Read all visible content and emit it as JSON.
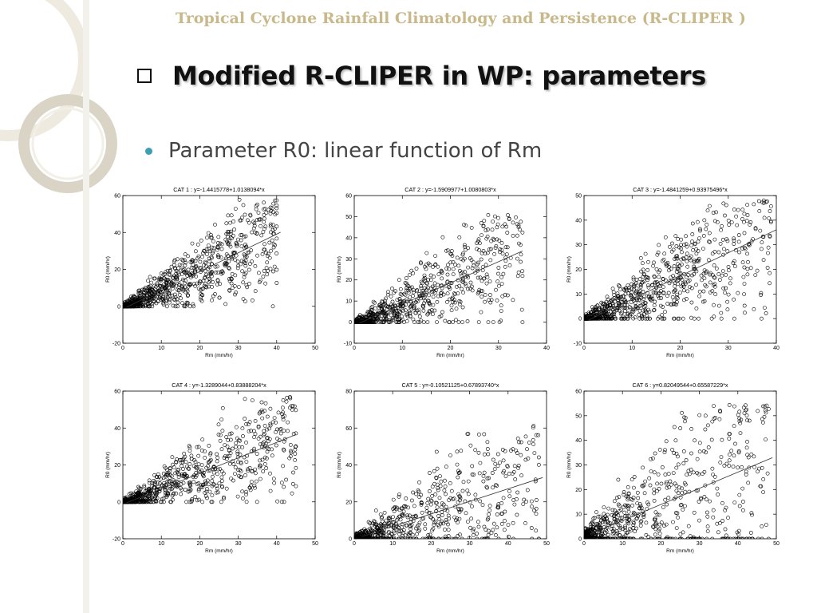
{
  "slide": {
    "header": "Tropical Cyclone Rainfall Climatology and Persistence (R-CLIPER )",
    "title": "Modified R-CLIPER in WP: parameters",
    "bullet": "Parameter R0: linear function of Rm",
    "colors": {
      "header": "#c8b88a",
      "bullet_dot": "#3d9fb3",
      "title": "#111111"
    }
  },
  "chart_data": [
    {
      "type": "scatter",
      "title": "CAT 1 : y=-1.4415778+1.0138094*x",
      "xlabel": "Rm (mm/hr)",
      "ylabel": "R0 (mm/hr)",
      "xlim": [
        0,
        50
      ],
      "ylim": [
        -20,
        60
      ],
      "xticks": [
        "0",
        "10",
        "20",
        "30",
        "40",
        "50"
      ],
      "yticks": [
        "-20",
        "0",
        "20",
        "40",
        "60"
      ],
      "fit": {
        "intercept": -1.4415778,
        "slope": 1.0138094,
        "x_range": [
          1,
          41
        ]
      },
      "scatter": {
        "n": 900,
        "x_max": 40,
        "y_min": 0,
        "y_max": 58,
        "noise": 0.35,
        "seed": 11
      }
    },
    {
      "type": "scatter",
      "title": "CAT 2 : y=-1.5909977+1.0080803*x",
      "xlabel": "Rm (mm/hr)",
      "ylabel": "R0 (mm/hr)",
      "xlim": [
        0,
        40
      ],
      "ylim": [
        -10,
        60
      ],
      "xticks": [
        "0",
        "10",
        "20",
        "30",
        "40"
      ],
      "yticks": [
        "-10",
        "0",
        "10",
        "20",
        "30",
        "40",
        "50",
        "60"
      ],
      "fit": {
        "intercept": -1.5909977,
        "slope": 1.0080803,
        "x_range": [
          1,
          35
        ]
      },
      "scatter": {
        "n": 800,
        "x_max": 35,
        "y_min": 0,
        "y_max": 51,
        "noise": 0.4,
        "seed": 23
      }
    },
    {
      "type": "scatter",
      "title": "CAT 3 : y=-1.4841259+0.93975496*x",
      "xlabel": "Rm (mm/hr)",
      "ylabel": "R0 (mm/hr)",
      "xlim": [
        0,
        40
      ],
      "ylim": [
        -10,
        50
      ],
      "xticks": [
        "0",
        "10",
        "20",
        "30",
        "40"
      ],
      "yticks": [
        "-10",
        "0",
        "10",
        "20",
        "30",
        "40",
        "50"
      ],
      "fit": {
        "intercept": -1.4841259,
        "slope": 0.93975496,
        "x_range": [
          1,
          40
        ]
      },
      "scatter": {
        "n": 850,
        "x_max": 39,
        "y_min": 0,
        "y_max": 48,
        "noise": 0.4,
        "seed": 37
      }
    },
    {
      "type": "scatter",
      "title": "CAT 4 : y=-1.3289044+0.83888204*x",
      "xlabel": "Rm (mm/hr)",
      "ylabel": "R0 (mm/hr)",
      "xlim": [
        0,
        50
      ],
      "ylim": [
        -20,
        60
      ],
      "xticks": [
        "0",
        "10",
        "20",
        "30",
        "40",
        "50"
      ],
      "yticks": [
        "-20",
        "0",
        "20",
        "40",
        "60"
      ],
      "fit": {
        "intercept": -1.3289044,
        "slope": 0.83888204,
        "x_range": [
          1,
          45
        ]
      },
      "scatter": {
        "n": 800,
        "x_max": 45,
        "y_min": 0,
        "y_max": 58,
        "noise": 0.35,
        "seed": 41
      }
    },
    {
      "type": "scatter",
      "title": "CAT 5 : y=-0.10521125+0.67893740*x",
      "xlabel": "Rm (mm/hr)",
      "ylabel": "R0 (mm/hr)",
      "xlim": [
        0,
        50
      ],
      "ylim": [
        0,
        80
      ],
      "xticks": [
        "0",
        "10",
        "20",
        "30",
        "40",
        "50"
      ],
      "yticks": [
        "0",
        "20",
        "40",
        "60",
        "80"
      ],
      "fit": {
        "intercept": -0.10521125,
        "slope": 0.6789374,
        "x_range": [
          2,
          49
        ]
      },
      "scatter": {
        "n": 700,
        "x_max": 48,
        "y_min": 0,
        "y_max": 62,
        "noise": 0.5,
        "seed": 53
      }
    },
    {
      "type": "scatter",
      "title": "CAT 6 : y=0.82049544+0.65587229*x",
      "xlabel": "Rm (mm/hr)",
      "ylabel": "R0 (mm/hr)",
      "xlim": [
        0,
        50
      ],
      "ylim": [
        0,
        60
      ],
      "xticks": [
        "0",
        "10",
        "20",
        "30",
        "40",
        "50"
      ],
      "yticks": [
        "0",
        "10",
        "20",
        "30",
        "40",
        "50",
        "60"
      ],
      "fit": {
        "intercept": 0.82049544,
        "slope": 0.65587229,
        "x_range": [
          2,
          49
        ]
      },
      "scatter": {
        "n": 700,
        "x_max": 48,
        "y_min": 0,
        "y_max": 55,
        "noise": 0.55,
        "seed": 67
      }
    }
  ]
}
